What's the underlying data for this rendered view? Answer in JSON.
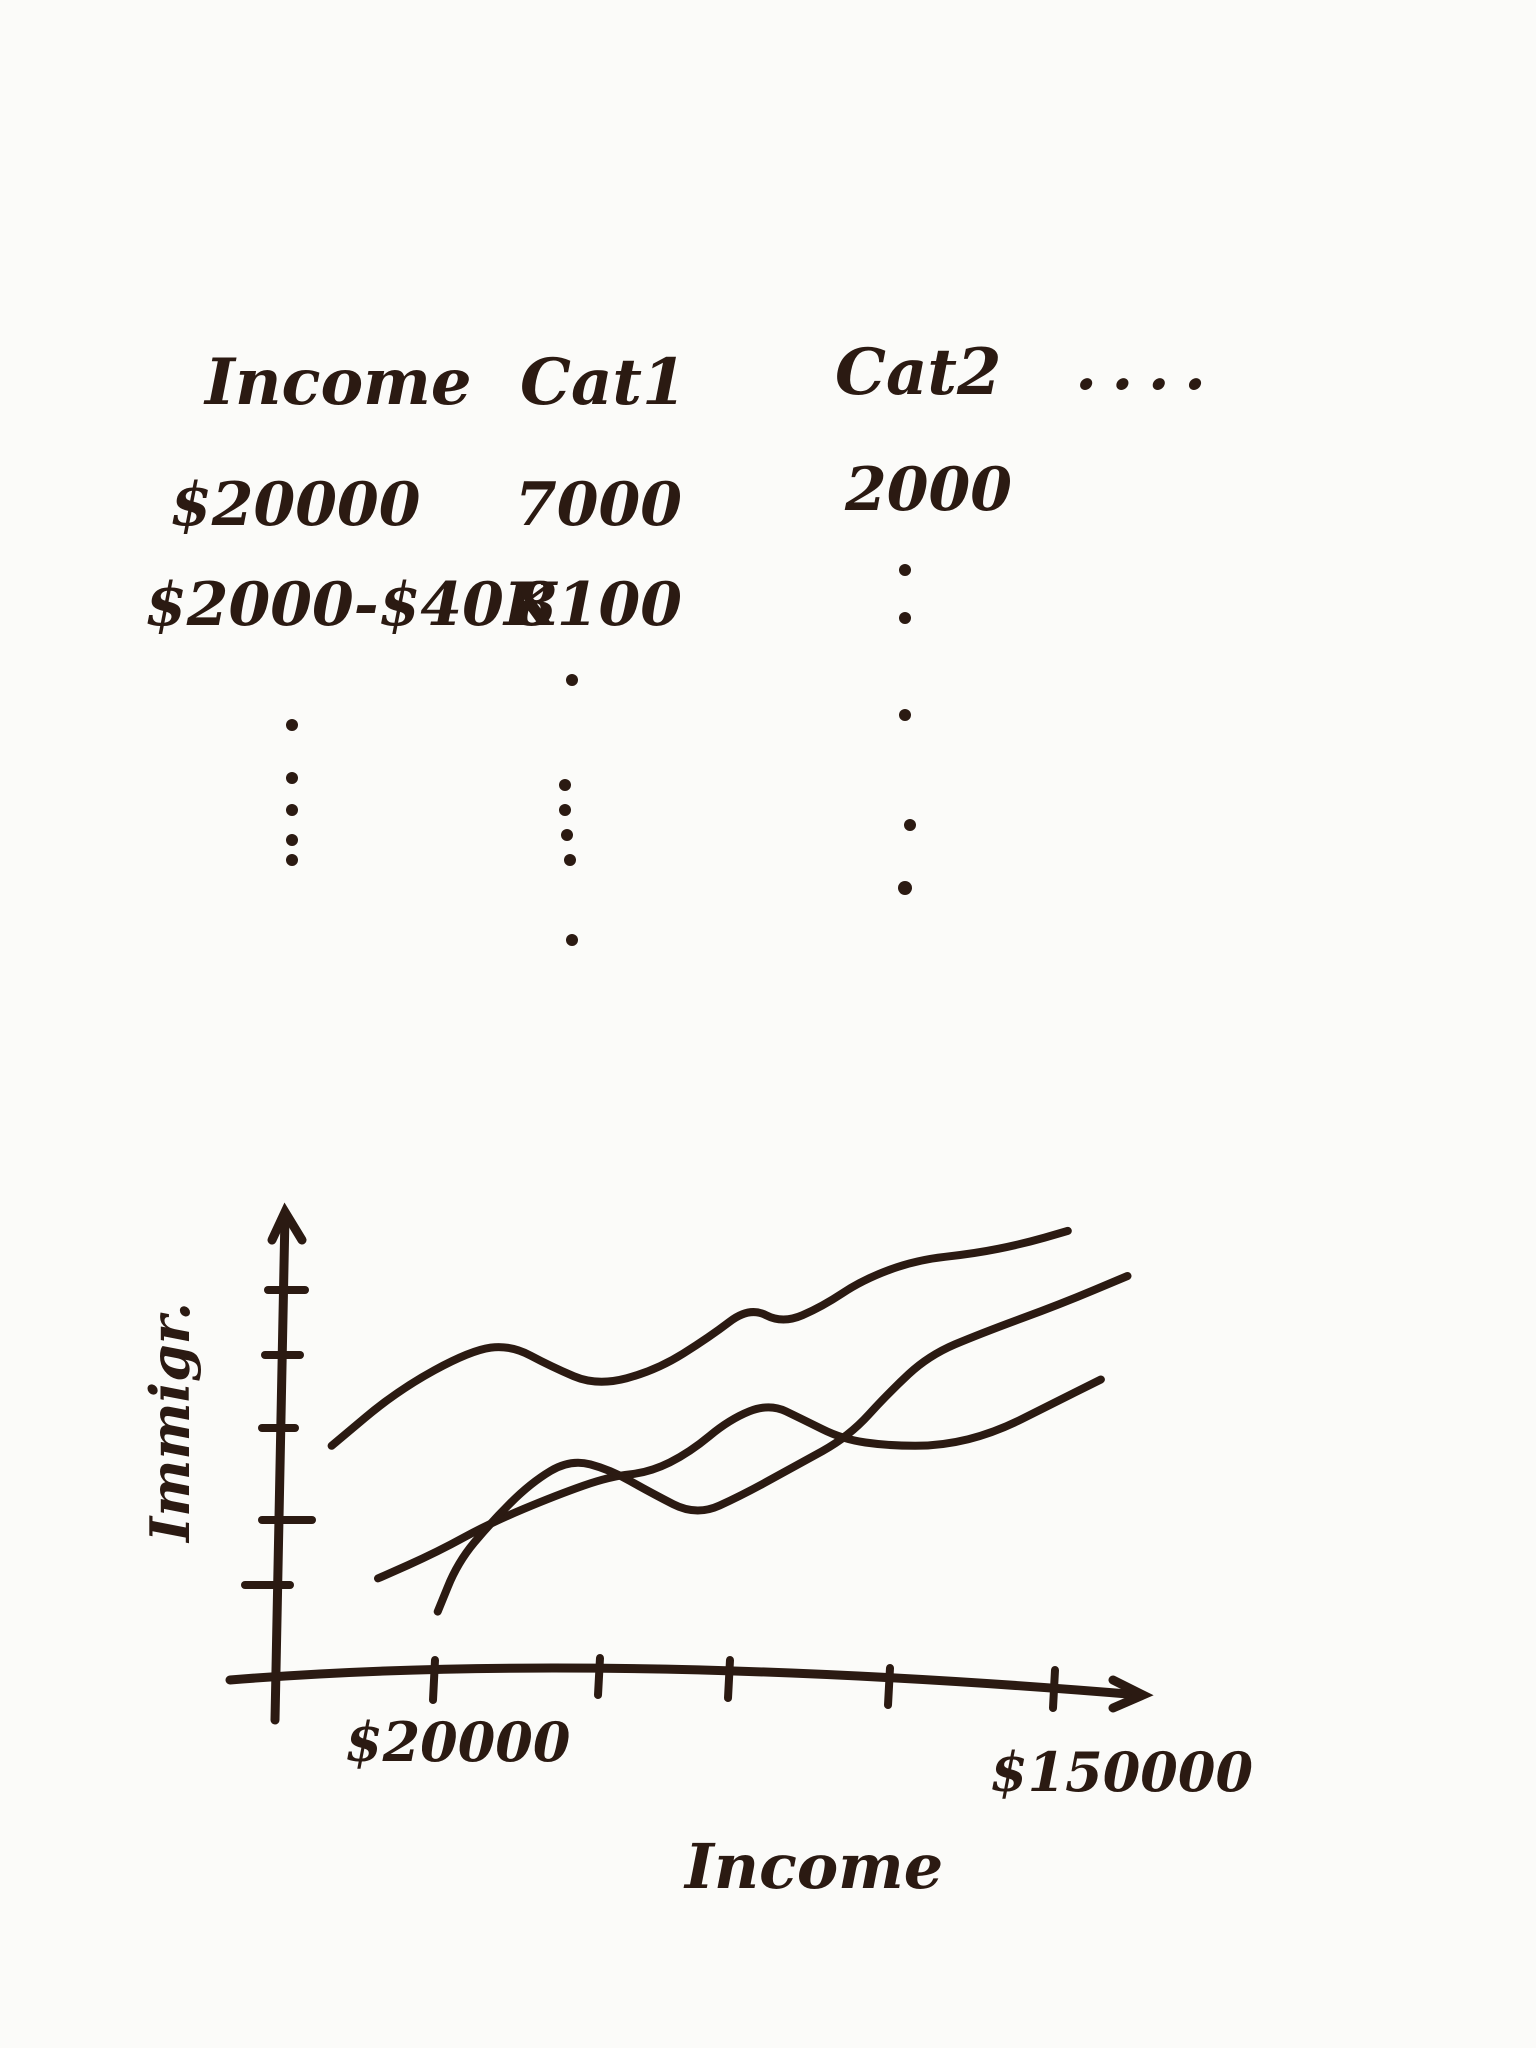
{
  "table": {
    "headers": [
      "Income",
      "Cat1",
      "Cat2",
      "...."
    ],
    "rows": [
      [
        "$20000",
        "7000",
        "2000"
      ],
      [
        "$2000-$40K",
        "8100",
        ""
      ]
    ]
  },
  "chart_data": {
    "type": "line",
    "xlabel": "Income",
    "ylabel": "Immigr.",
    "x_tick_labels": [
      "$20000",
      "$150000"
    ],
    "series": [
      {
        "values": [
          [
            250,
            1090
          ],
          [
            300,
            1048
          ],
          [
            355,
            1018
          ],
          [
            385,
            1014
          ],
          [
            415,
            1030
          ],
          [
            450,
            1045
          ],
          [
            495,
            1033
          ],
          [
            535,
            1008
          ],
          [
            565,
            985
          ],
          [
            590,
            998
          ],
          [
            620,
            985
          ],
          [
            650,
            965
          ],
          [
            690,
            950
          ],
          [
            735,
            945
          ],
          [
            770,
            938
          ],
          [
            805,
            928
          ]
        ]
      },
      {
        "values": [
          [
            285,
            1190
          ],
          [
            330,
            1170
          ],
          [
            370,
            1148
          ],
          [
            420,
            1127
          ],
          [
            460,
            1113
          ],
          [
            490,
            1110
          ],
          [
            520,
            1095
          ],
          [
            550,
            1070
          ],
          [
            580,
            1058
          ],
          [
            605,
            1070
          ],
          [
            635,
            1085
          ],
          [
            670,
            1090
          ],
          [
            710,
            1090
          ],
          [
            750,
            1080
          ],
          [
            790,
            1060
          ],
          [
            830,
            1040
          ]
        ]
      },
      {
        "values": [
          [
            330,
            1215
          ],
          [
            345,
            1178
          ],
          [
            370,
            1148
          ],
          [
            400,
            1118
          ],
          [
            430,
            1100
          ],
          [
            460,
            1108
          ],
          [
            490,
            1125
          ],
          [
            525,
            1143
          ],
          [
            560,
            1127
          ],
          [
            600,
            1105
          ],
          [
            640,
            1083
          ],
          [
            670,
            1050
          ],
          [
            700,
            1022
          ],
          [
            740,
            1005
          ],
          [
            800,
            983
          ],
          [
            850,
            962
          ]
        ]
      }
    ]
  }
}
